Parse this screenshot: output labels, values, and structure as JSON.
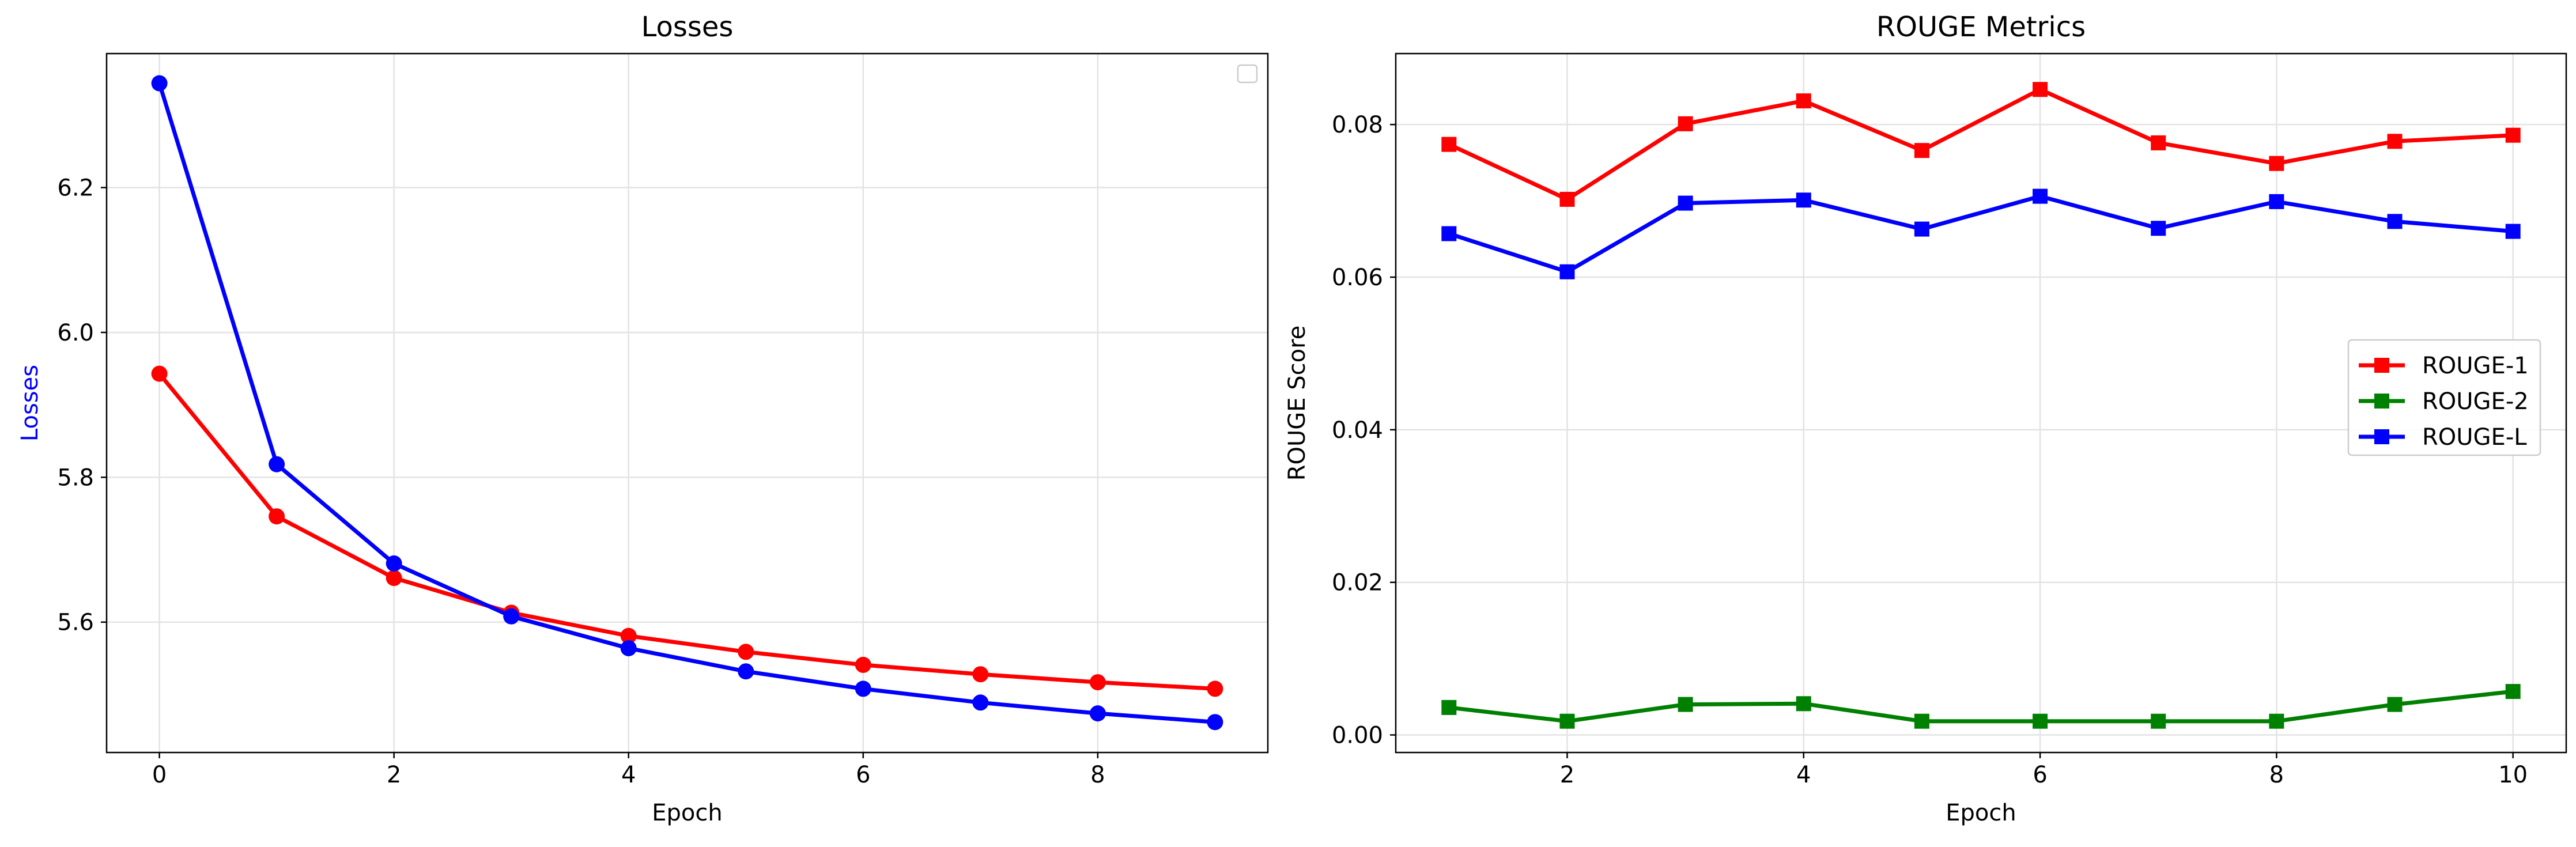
{
  "chart_data": [
    {
      "type": "line",
      "title": "Losses",
      "xlabel": "Epoch",
      "ylabel": "Losses",
      "ylabel_color": "#0000ff",
      "xlim": [
        -0.45,
        9.45
      ],
      "ylim": [
        5.42,
        6.385
      ],
      "xticks": [
        0,
        2,
        4,
        6,
        8
      ],
      "xtick_labels": [
        "0",
        "2",
        "4",
        "6",
        "8"
      ],
      "yticks": [
        5.6,
        5.8,
        6.0,
        6.2
      ],
      "ytick_labels": [
        "5.6",
        "5.8",
        "6.0",
        "6.2"
      ],
      "grid": true,
      "legend": "empty box, top-right",
      "x": [
        0,
        1,
        2,
        3,
        4,
        5,
        6,
        7,
        8,
        9
      ],
      "series": [
        {
          "color": "#ff0000",
          "marker": "circle",
          "values": [
            5.943,
            5.746,
            5.661,
            5.613,
            5.581,
            5.559,
            5.541,
            5.528,
            5.517,
            5.508
          ]
        },
        {
          "color": "#0000ff",
          "marker": "circle",
          "values": [
            6.344,
            5.818,
            5.681,
            5.608,
            5.564,
            5.532,
            5.508,
            5.489,
            5.474,
            5.462
          ]
        }
      ]
    },
    {
      "type": "line",
      "title": "ROUGE Metrics",
      "xlabel": "Epoch",
      "ylabel": "ROUGE Score",
      "xlim": [
        0.55,
        10.45
      ],
      "ylim": [
        -0.0023,
        0.0893
      ],
      "xticks": [
        2,
        4,
        6,
        8,
        10
      ],
      "xtick_labels": [
        "2",
        "4",
        "6",
        "8",
        "10"
      ],
      "yticks": [
        0.0,
        0.02,
        0.04,
        0.06,
        0.08
      ],
      "ytick_labels": [
        "0.00",
        "0.02",
        "0.04",
        "0.06",
        "0.08"
      ],
      "grid": true,
      "legend": "center-right",
      "x": [
        1,
        2,
        3,
        4,
        5,
        6,
        7,
        8,
        9,
        10
      ],
      "series": [
        {
          "name": "ROUGE-1",
          "color": "#ff0000",
          "marker": "square",
          "values": [
            0.0774,
            0.0702,
            0.0801,
            0.0831,
            0.0766,
            0.0846,
            0.0776,
            0.0749,
            0.0778,
            0.0786
          ]
        },
        {
          "name": "ROUGE-2",
          "color": "#008000",
          "marker": "square",
          "values": [
            0.0036,
            0.0018,
            0.004,
            0.0041,
            0.0018,
            0.0018,
            0.0018,
            0.0018,
            0.004,
            0.0057
          ]
        },
        {
          "name": "ROUGE-L",
          "color": "#0000ff",
          "marker": "square",
          "values": [
            0.0657,
            0.0607,
            0.0697,
            0.0701,
            0.0663,
            0.0706,
            0.0664,
            0.0699,
            0.0673,
            0.066
          ]
        }
      ]
    }
  ]
}
